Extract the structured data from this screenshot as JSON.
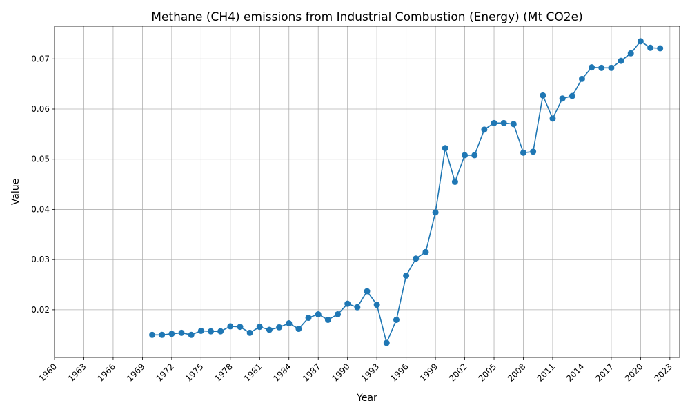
{
  "chart_data": {
    "type": "line",
    "title": "Methane (CH4) emissions from Industrial Combustion (Energy) (Mt CO2e)",
    "xlabel": "Year",
    "ylabel": "Value",
    "xlim": [
      1960,
      2024
    ],
    "ylim": [
      0.0105,
      0.0765
    ],
    "x_ticks": [
      1960,
      1963,
      1966,
      1969,
      1972,
      1975,
      1978,
      1981,
      1984,
      1987,
      1990,
      1993,
      1996,
      1999,
      2002,
      2005,
      2008,
      2011,
      2014,
      2017,
      2020,
      2023
    ],
    "y_ticks": [
      0.02,
      0.03,
      0.04,
      0.05,
      0.06,
      0.07
    ],
    "grid": true,
    "series_color": "#1f77b4",
    "series": [
      {
        "x": [
          1970,
          1971,
          1972,
          1973,
          1974,
          1975,
          1976,
          1977,
          1978,
          1979,
          1980,
          1981,
          1982,
          1983,
          1984,
          1985,
          1986,
          1987,
          1988,
          1989,
          1990,
          1991,
          1992,
          1993,
          1994,
          1995,
          1996,
          1997,
          1998,
          1999,
          2000,
          2001,
          2002,
          2003,
          2004,
          2005,
          2006,
          2007,
          2008,
          2009,
          2010,
          2011,
          2012,
          2013,
          2014,
          2015,
          2016,
          2017,
          2018,
          2019,
          2020,
          2021,
          2022
        ],
        "values": [
          0.015,
          0.015,
          0.0152,
          0.0154,
          0.015,
          0.0158,
          0.0157,
          0.0157,
          0.0167,
          0.0166,
          0.0154,
          0.0166,
          0.016,
          0.0165,
          0.0173,
          0.0162,
          0.0184,
          0.0191,
          0.018,
          0.0191,
          0.0212,
          0.0205,
          0.0237,
          0.021,
          0.0134,
          0.018,
          0.0268,
          0.0302,
          0.0315,
          0.0394,
          0.0522,
          0.0455,
          0.0508,
          0.0508,
          0.0559,
          0.0572,
          0.0572,
          0.057,
          0.0513,
          0.0515,
          0.0627,
          0.0581,
          0.0621,
          0.0626,
          0.066,
          0.0683,
          0.0682,
          0.0682,
          0.0696,
          0.0711,
          0.0735,
          0.0722,
          0.0721
        ]
      }
    ]
  }
}
